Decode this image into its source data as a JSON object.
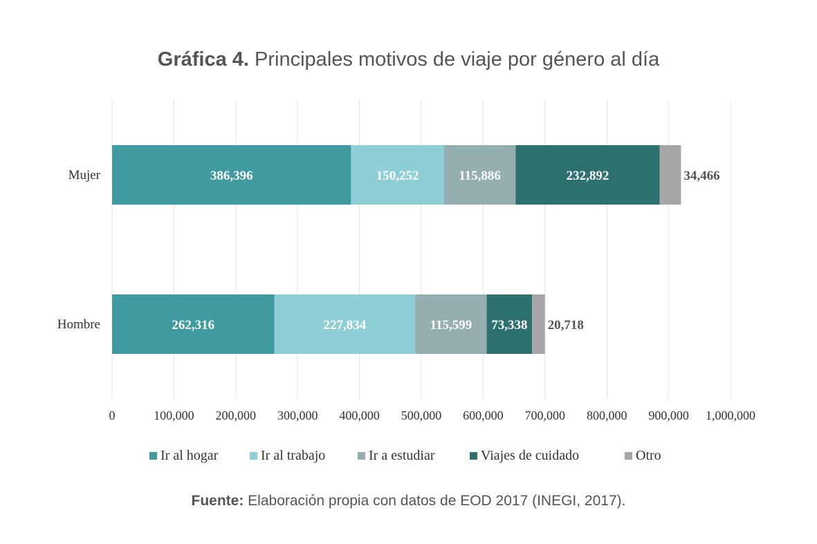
{
  "header": {
    "title_bold": "Gráfica 4.",
    "title_rest": " Principales motivos de viaje por género al día"
  },
  "chart_data": {
    "type": "bar",
    "orientation": "horizontal",
    "stacked": true,
    "categories": [
      "Mujer",
      "Hombre"
    ],
    "series": [
      {
        "name": "Ir al hogar",
        "color": "#3f9b9f",
        "values": [
          386396,
          262316
        ],
        "labels": [
          "386,396",
          "262,316"
        ]
      },
      {
        "name": "Ir al trabajo",
        "color": "#8ecfd6",
        "values": [
          150252,
          227834
        ],
        "labels": [
          "150,252",
          "227,834"
        ]
      },
      {
        "name": "Ir a estudiar",
        "color": "#95aeb0",
        "values": [
          115886,
          115599
        ],
        "labels": [
          "115,886",
          "115,599"
        ]
      },
      {
        "name": "Viajes de cuidado",
        "color": "#2c7070",
        "values": [
          232892,
          73338
        ],
        "labels": [
          "232,892",
          "73,338"
        ]
      },
      {
        "name": "Otro",
        "color": "#a6a6a6",
        "values": [
          34466,
          20718
        ],
        "labels": [
          "34,466",
          "20,718"
        ]
      }
    ],
    "xlim": [
      0,
      1000000
    ],
    "xticks": [
      0,
      100000,
      200000,
      300000,
      400000,
      500000,
      600000,
      700000,
      800000,
      900000,
      1000000
    ],
    "xtick_labels": [
      "0",
      "100,000",
      "200,000",
      "300,000",
      "400,000",
      "500,000",
      "600,000",
      "700,000",
      "800,000",
      "900,000",
      "1,000,000"
    ],
    "grid": true,
    "legend_position": "bottom"
  },
  "footer": {
    "source_bold": "Fuente:",
    "source_rest": " Elaboración propia con datos de EOD 2017 (INEGI, 2017)."
  }
}
